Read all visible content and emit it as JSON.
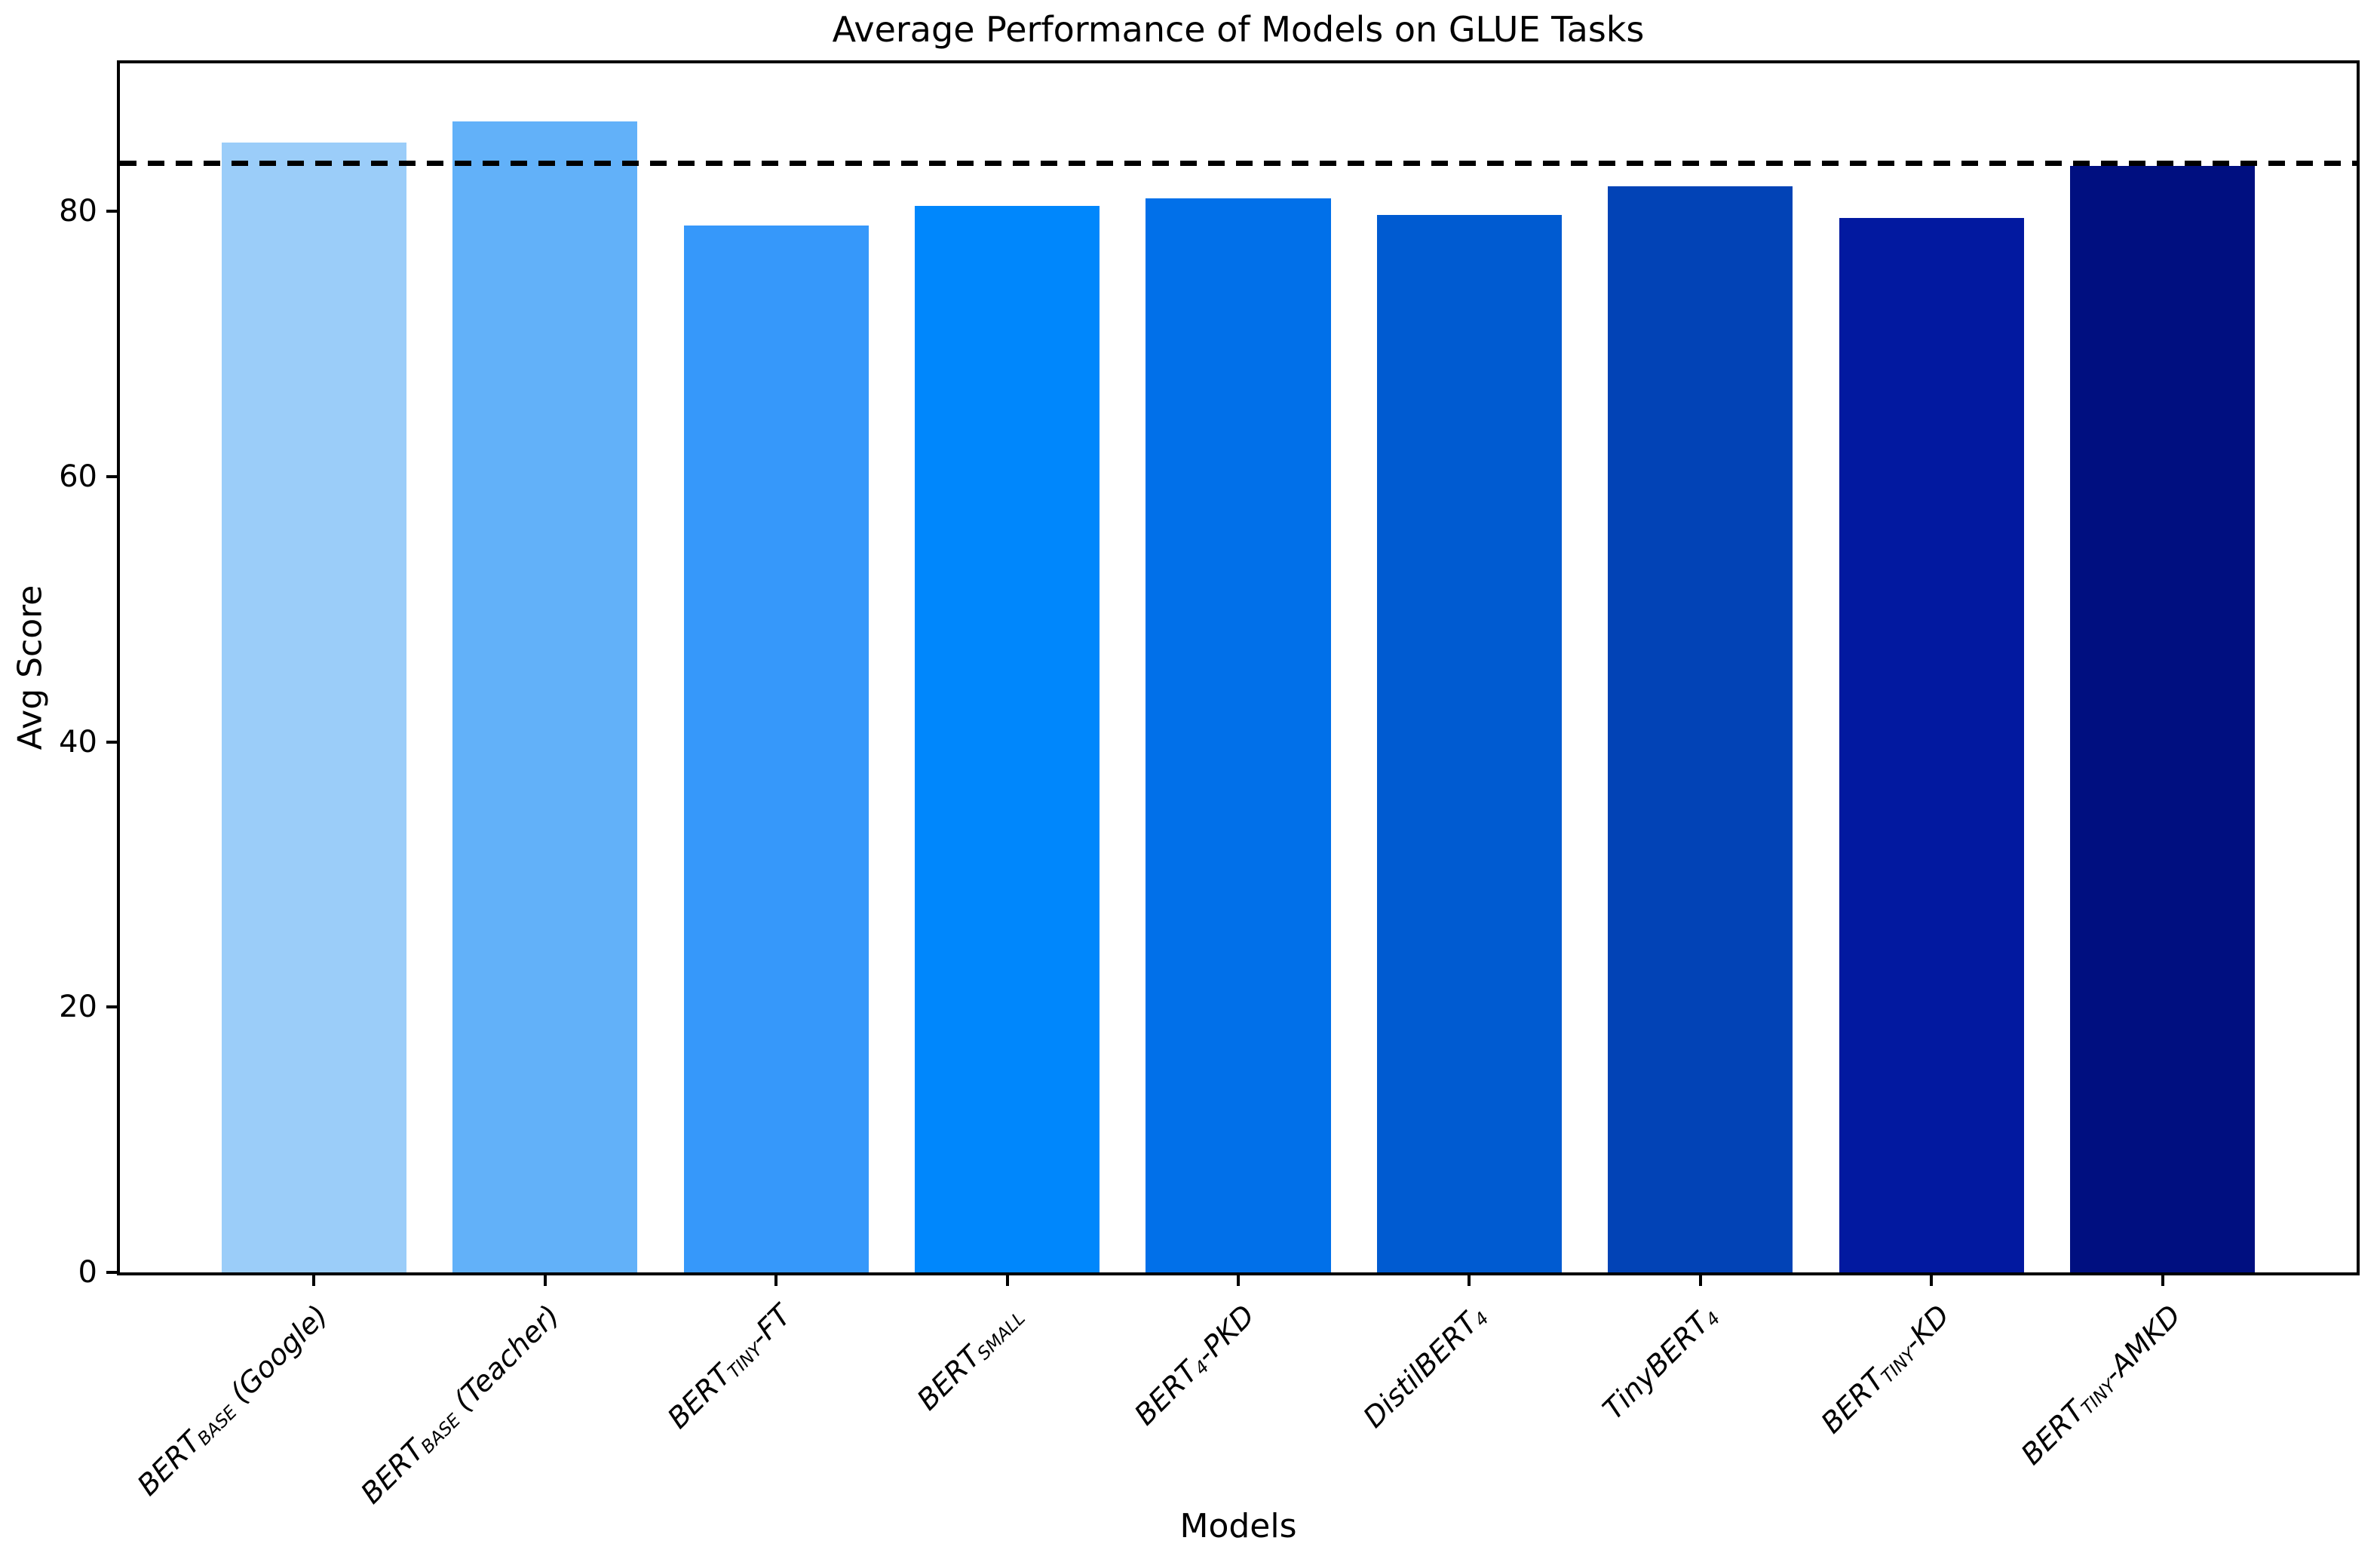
{
  "chart_data": {
    "type": "bar",
    "title": "Average Performance of Models on GLUE Tasks",
    "xlabel": "Models",
    "ylabel": "Avg Score",
    "ylim": [
      0,
      91.15
    ],
    "xlim": [
      -0.84,
      8.84
    ],
    "bar_width": 0.8,
    "yticks": [
      0,
      20,
      40,
      60,
      80
    ],
    "grid": false,
    "legend": false,
    "reference_line": {
      "value": 83.6,
      "style": "dashed",
      "color": "#000000"
    },
    "categories": [
      "BERT_BASE (Google)",
      "BERT_BASE (Teacher)",
      "BERT_TINY-FT",
      "BERT_SMALL",
      "BERT_4-PKD",
      "DistilBERT_4",
      "TinyBERT_4",
      "BERT_TINY-KD",
      "BERT_TINY-AMKD"
    ],
    "categories_rich": [
      {
        "pre": "BERT",
        "sub": "BASE",
        "post": " (Google)"
      },
      {
        "pre": "BERT",
        "sub": "BASE",
        "post": " (Teacher)"
      },
      {
        "pre": "BERT",
        "sub": "TINY",
        "post": "-FT"
      },
      {
        "pre": "BERT",
        "sub": "SMALL",
        "post": ""
      },
      {
        "pre": "BERT",
        "sub": "4",
        "post": "-PKD"
      },
      {
        "pre": "DistilBERT",
        "sub": "4",
        "post": ""
      },
      {
        "pre": "TinyBERT",
        "sub": "4",
        "post": ""
      },
      {
        "pre": "BERT",
        "sub": "TINY",
        "post": "-KD"
      },
      {
        "pre": "BERT",
        "sub": "TINY",
        "post": "-AMKD"
      }
    ],
    "values": [
      85.2,
      86.8,
      78.9,
      80.4,
      81.0,
      79.7,
      81.9,
      79.5,
      83.4
    ],
    "bar_colors": [
      "#9bcdf9",
      "#62b1f9",
      "#3698fa",
      "#0087fc",
      "#0170e9",
      "#005bd1",
      "#0243b6",
      "#0219a0",
      "#000f80"
    ]
  }
}
